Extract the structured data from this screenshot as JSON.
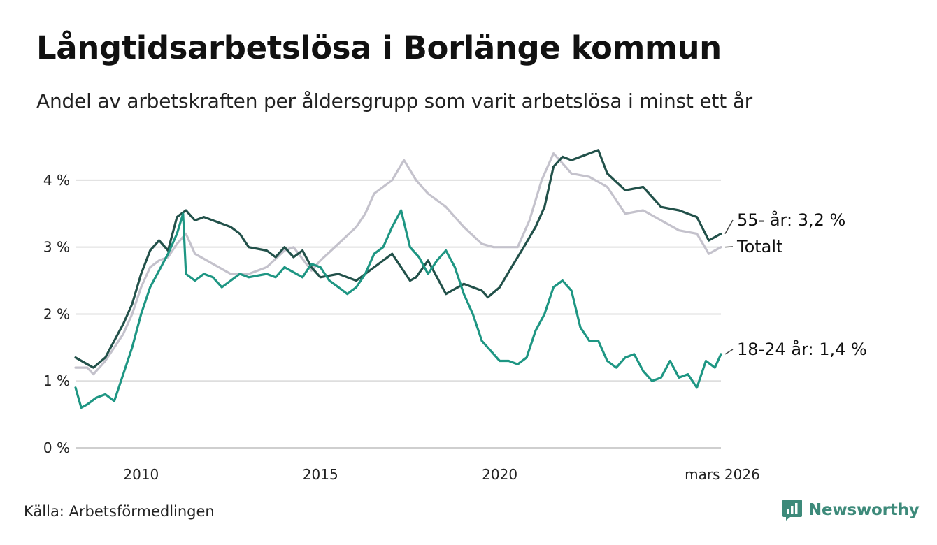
{
  "title": "Långtidsarbetslösa i Borlänge kommun",
  "subtitle": "Andel av arbetskraften per åldersgrupp som varit arbetslösa i minst ett år",
  "source": "Källa: Arbetsförmedlingen",
  "brand": {
    "name": "Newsworthy",
    "icon": "newsworthy-logo-icon",
    "color": "#3d8a7a"
  },
  "chart_data": {
    "type": "line",
    "title": "Långtidsarbetslösa i Borlänge kommun",
    "xlabel": "",
    "ylabel": "",
    "xlim": [
      2008.17,
      2026.17
    ],
    "ylim": [
      0,
      4.5
    ],
    "grid": true,
    "y_ticks": [
      {
        "value": 0,
        "label": "0 %"
      },
      {
        "value": 1,
        "label": "1 %"
      },
      {
        "value": 2,
        "label": "2 %"
      },
      {
        "value": 3,
        "label": "3 %"
      },
      {
        "value": 4,
        "label": "4 %"
      }
    ],
    "x_ticks": [
      {
        "value": 2010,
        "label": "2010"
      },
      {
        "value": 2015,
        "label": "2015"
      },
      {
        "value": 2020,
        "label": "2020"
      },
      {
        "value": 2026.17,
        "label": "mars 2026"
      }
    ],
    "series": [
      {
        "name": "Totalt",
        "end_label": "Totalt",
        "color": "#c4c2cc",
        "x": [
          2008.17,
          2008.5,
          2008.67,
          2009.0,
          2009.25,
          2009.5,
          2009.75,
          2010.0,
          2010.25,
          2010.5,
          2010.75,
          2011.0,
          2011.25,
          2011.5,
          2012.0,
          2012.5,
          2013.0,
          2013.5,
          2014.0,
          2014.25,
          2014.75,
          2015.0,
          2015.5,
          2016.0,
          2016.25,
          2016.5,
          2017.0,
          2017.33,
          2017.67,
          2018.0,
          2018.5,
          2019.0,
          2019.5,
          2019.83,
          2020.5,
          2020.83,
          2021.17,
          2021.5,
          2021.67,
          2022.0,
          2022.5,
          2023.0,
          2023.5,
          2024.0,
          2024.5,
          2025.0,
          2025.5,
          2025.83,
          2026.17
        ],
        "y": [
          1.2,
          1.2,
          1.1,
          1.3,
          1.5,
          1.7,
          2.0,
          2.4,
          2.7,
          2.8,
          2.85,
          3.05,
          3.2,
          2.9,
          2.75,
          2.6,
          2.6,
          2.7,
          2.95,
          3.0,
          2.65,
          2.8,
          3.05,
          3.3,
          3.5,
          3.8,
          4.0,
          4.3,
          4.0,
          3.8,
          3.6,
          3.3,
          3.05,
          3.0,
          3.0,
          3.4,
          4.0,
          4.4,
          4.3,
          4.1,
          4.05,
          3.9,
          3.5,
          3.55,
          3.4,
          3.25,
          3.2,
          2.9,
          3.0
        ]
      },
      {
        "name": "55- år",
        "end_label": "55- år: 3,2 %",
        "color": "#22514a",
        "x": [
          2008.17,
          2008.5,
          2008.67,
          2009.0,
          2009.25,
          2009.5,
          2009.75,
          2010.0,
          2010.25,
          2010.5,
          2010.75,
          2011.0,
          2011.25,
          2011.5,
          2011.75,
          2012.0,
          2012.5,
          2012.75,
          2013.0,
          2013.5,
          2013.75,
          2014.0,
          2014.25,
          2014.5,
          2014.75,
          2015.0,
          2015.5,
          2016.0,
          2016.5,
          2017.0,
          2017.25,
          2017.5,
          2017.67,
          2018.0,
          2018.25,
          2018.5,
          2019.0,
          2019.5,
          2019.67,
          2020.0,
          2020.33,
          2020.67,
          2021.0,
          2021.25,
          2021.5,
          2021.75,
          2022.0,
          2022.5,
          2022.75,
          2023.0,
          2023.5,
          2024.0,
          2024.5,
          2025.0,
          2025.5,
          2025.83,
          2026.17
        ],
        "y": [
          1.35,
          1.25,
          1.2,
          1.35,
          1.6,
          1.85,
          2.15,
          2.6,
          2.95,
          3.1,
          2.95,
          3.45,
          3.55,
          3.4,
          3.45,
          3.4,
          3.3,
          3.2,
          3.0,
          2.95,
          2.85,
          3.0,
          2.85,
          2.95,
          2.7,
          2.55,
          2.6,
          2.5,
          2.7,
          2.9,
          2.7,
          2.5,
          2.55,
          2.8,
          2.55,
          2.3,
          2.45,
          2.35,
          2.25,
          2.4,
          2.7,
          3.0,
          3.3,
          3.6,
          4.2,
          4.35,
          4.3,
          4.4,
          4.45,
          4.1,
          3.85,
          3.9,
          3.6,
          3.55,
          3.45,
          3.1,
          3.2
        ]
      },
      {
        "name": "18-24 år",
        "end_label": "18-24 år: 1,4 %",
        "color": "#1e9683",
        "x": [
          2008.17,
          2008.33,
          2008.5,
          2008.75,
          2009.0,
          2009.25,
          2009.5,
          2009.75,
          2010.0,
          2010.25,
          2010.5,
          2010.75,
          2011.0,
          2011.17,
          2011.25,
          2011.5,
          2011.75,
          2012.0,
          2012.25,
          2012.5,
          2012.75,
          2013.0,
          2013.5,
          2013.75,
          2014.0,
          2014.5,
          2014.75,
          2015.0,
          2015.25,
          2015.5,
          2015.75,
          2016.0,
          2016.25,
          2016.5,
          2016.75,
          2017.0,
          2017.25,
          2017.5,
          2017.75,
          2018.0,
          2018.25,
          2018.5,
          2018.75,
          2019.0,
          2019.25,
          2019.5,
          2019.75,
          2020.0,
          2020.25,
          2020.5,
          2020.75,
          2021.0,
          2021.25,
          2021.5,
          2021.75,
          2022.0,
          2022.25,
          2022.5,
          2022.75,
          2023.0,
          2023.25,
          2023.5,
          2023.75,
          2024.0,
          2024.25,
          2024.5,
          2024.75,
          2025.0,
          2025.25,
          2025.5,
          2025.75,
          2026.0,
          2026.17
        ],
        "y": [
          0.9,
          0.6,
          0.65,
          0.75,
          0.8,
          0.7,
          1.1,
          1.5,
          2.0,
          2.4,
          2.65,
          2.9,
          3.2,
          3.5,
          2.6,
          2.5,
          2.6,
          2.55,
          2.4,
          2.5,
          2.6,
          2.55,
          2.6,
          2.55,
          2.7,
          2.55,
          2.75,
          2.7,
          2.5,
          2.4,
          2.3,
          2.4,
          2.6,
          2.9,
          3.0,
          3.3,
          3.55,
          3.0,
          2.85,
          2.6,
          2.8,
          2.95,
          2.7,
          2.3,
          2.0,
          1.6,
          1.45,
          1.3,
          1.3,
          1.25,
          1.35,
          1.75,
          2.0,
          2.4,
          2.5,
          2.35,
          1.8,
          1.6,
          1.6,
          1.3,
          1.2,
          1.35,
          1.4,
          1.15,
          1.0,
          1.05,
          1.3,
          1.05,
          1.1,
          0.9,
          1.3,
          1.2,
          1.4
        ]
      }
    ]
  }
}
